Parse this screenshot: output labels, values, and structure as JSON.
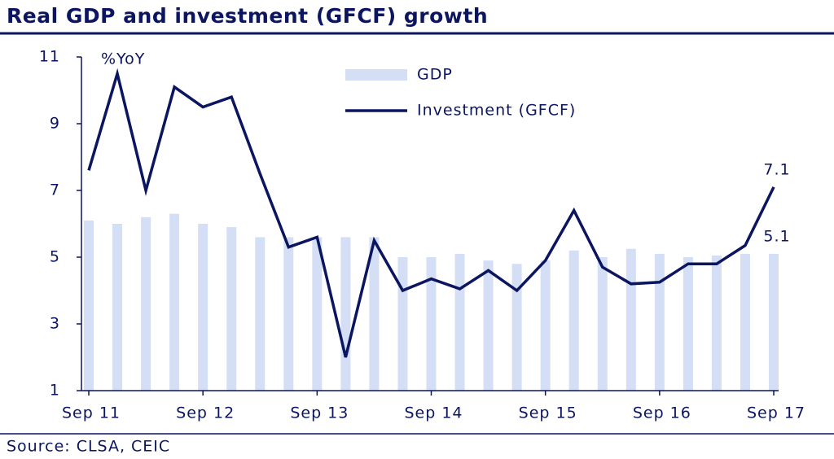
{
  "chart_data": {
    "type": "bar-line",
    "title": "Real GDP and investment (GFCF) growth",
    "y_label": "%YoY",
    "source": "Source: CLSA, CEIC",
    "categories": [
      "Sep 11",
      null,
      null,
      null,
      "Sep 12",
      null,
      null,
      null,
      "Sep 13",
      null,
      null,
      null,
      "Sep 14",
      null,
      null,
      null,
      "Sep 15",
      null,
      null,
      null,
      "Sep 16",
      null,
      null,
      null,
      "Sep 17"
    ],
    "series": [
      {
        "name": "GDP",
        "kind": "bar",
        "color": "#d4dff5",
        "values": [
          6.1,
          6.0,
          6.2,
          6.3,
          6.0,
          5.9,
          5.6,
          5.6,
          5.6,
          5.6,
          5.6,
          5.0,
          5.0,
          5.1,
          4.9,
          4.8,
          4.9,
          5.2,
          5.0,
          5.25,
          5.1,
          5.0,
          5.05,
          5.1,
          5.1
        ]
      },
      {
        "name": "Investment (GFCF)",
        "kind": "line",
        "color": "#0b1560",
        "values": [
          7.6,
          10.5,
          7.0,
          10.1,
          9.5,
          9.8,
          7.5,
          5.3,
          5.6,
          2.0,
          5.5,
          4.0,
          4.35,
          4.05,
          4.6,
          4.0,
          4.9,
          6.4,
          4.7,
          4.2,
          4.25,
          4.8,
          4.8,
          5.35,
          7.1
        ]
      }
    ],
    "ylim": [
      1,
      11
    ],
    "yticks": [
      1,
      3,
      5,
      7,
      9,
      11
    ]
  }
}
